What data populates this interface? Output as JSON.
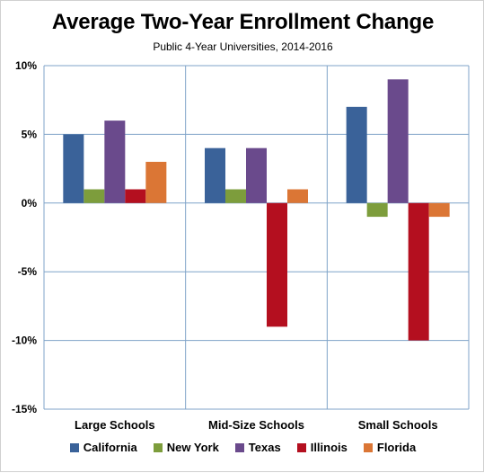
{
  "chart_data": {
    "type": "bar",
    "title": "Average Two-Year Enrollment Change",
    "subtitle": "Public 4-Year Universities, 2014-2016",
    "xlabel": "",
    "ylabel": "",
    "categories": [
      "Large Schools",
      "Mid-Size Schools",
      "Small Schools"
    ],
    "series": [
      {
        "name": "California",
        "color": "#3A6299",
        "values": [
          5,
          4,
          7
        ]
      },
      {
        "name": "New York",
        "color": "#7D9D3C",
        "values": [
          1,
          1,
          -1
        ]
      },
      {
        "name": "Texas",
        "color": "#6A4A8C",
        "values": [
          6,
          4,
          9
        ]
      },
      {
        "name": "Illinois",
        "color": "#B40F1F",
        "values": [
          1,
          -9,
          -10
        ]
      },
      {
        "name": "Florida",
        "color": "#DB7635",
        "values": [
          3,
          1,
          -1
        ]
      }
    ],
    "ylim": [
      -15,
      10
    ],
    "yticks": [
      10,
      5,
      0,
      -5,
      -10,
      -15
    ],
    "ytick_labels": [
      "10%",
      "5%",
      "0%",
      "-5%",
      "-10%",
      "-15%"
    ],
    "grid": true,
    "legend_position": "bottom"
  }
}
